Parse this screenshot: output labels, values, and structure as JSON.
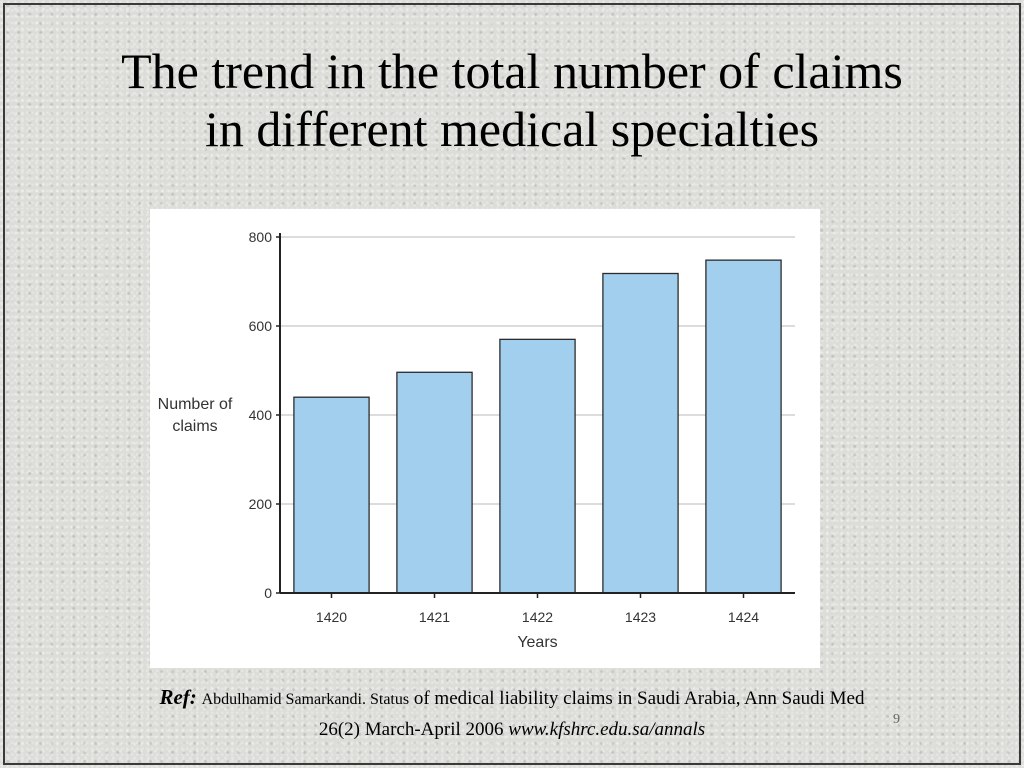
{
  "slide": {
    "title_line1": "The trend in the total number of claims",
    "title_line2": "in different medical specialties",
    "page_number": "9"
  },
  "reference": {
    "label": "Ref:",
    "author": "Abdulhamid Samarkandi. Status",
    "text": " of medical liability claims in Saudi Arabia, Ann Saudi Med",
    "line2": "26(2) March-April 2006 ",
    "url": "www.kfshrc.edu.sa/annals"
  },
  "colors": {
    "bar_fill": "#a3cfee",
    "bar_stroke": "#2b2b2b",
    "grid": "#d0d0d0",
    "axis": "#222222"
  },
  "chart_data": {
    "type": "bar",
    "categories": [
      "1420",
      "1421",
      "1422",
      "1423",
      "1424"
    ],
    "values": [
      440,
      496,
      570,
      718,
      748
    ],
    "xlabel": "Years",
    "ylabel_line1": "Number of",
    "ylabel_line2": "claims",
    "ylim": [
      0,
      800
    ],
    "yticks": [
      0,
      200,
      400,
      600,
      800
    ],
    "grid": true
  }
}
